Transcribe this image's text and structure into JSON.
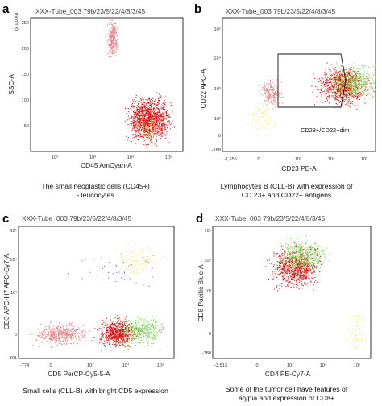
{
  "colors": {
    "pink": "#e57f86",
    "red": "#dd1616",
    "green": "#7ed957",
    "yellow": "#f2ef64",
    "blue": "#6d6de3"
  },
  "chart_data": [
    {
      "type": "scatter",
      "panel_label": "a",
      "title": "XXX-Tube_003 79b/23/5/22/4/8/3/45",
      "xlabel": "CD45 AmCyan-A",
      "ylabel": "SSC-A",
      "y_multiplier_label": "(x 1,000)",
      "x_scale": "log",
      "y_scale": "linear",
      "xlim": [
        15,
        150000
      ],
      "ylim": [
        0,
        260
      ],
      "x_ticks": [
        "10²",
        "10³",
        "10⁴",
        "10⁵"
      ],
      "y_ticks": [
        "50",
        "100",
        "150",
        "200",
        "250"
      ],
      "caption": [
        "The small neoplastic cells (CD45+)",
        "- leucocytes"
      ],
      "populations": [
        {
          "color": "pink",
          "n": 260,
          "x": [
            1600,
            2900
          ],
          "y": [
            185,
            250
          ]
        },
        {
          "color": "red",
          "n": 1300,
          "x": [
            6000,
            60000
          ],
          "y": [
            25,
            100
          ]
        },
        {
          "color": "yellow",
          "n": 70,
          "x": [
            9000,
            45000
          ],
          "y": [
            28,
            70
          ]
        }
      ]
    },
    {
      "type": "scatter",
      "panel_label": "b",
      "title": "XXX-Tube_003 79b/23/5/22/4/8/3/45",
      "xlabel": "CD23 PE-A",
      "ylabel": "CD22 APC-A",
      "x_scale": "biexponential",
      "y_scale": "biexponential",
      "xlim": [
        -1655,
        130000
      ],
      "ylim": [
        -188,
        130000
      ],
      "x_ticks": [
        "-1,655",
        "0",
        "10³",
        "10⁴",
        "10⁵"
      ],
      "y_ticks": [
        "-188",
        "0",
        "10²",
        "10³",
        "10⁴",
        "10⁵"
      ],
      "gate": {
        "label": "CD23+/CD22+dim",
        "x": [
          2500,
          110000
        ],
        "y": [
          300,
          60000
        ]
      },
      "caption": [
        "Lymphocytes B (CLL-B) with expression of",
        "CD 23+ and CD22+ antigens"
      ],
      "populations": [
        {
          "color": "pink",
          "n": 220,
          "x": [
            -60,
            160
          ],
          "y": [
            500,
            2500
          ]
        },
        {
          "color": "yellow",
          "n": 80,
          "x": [
            -250,
            90
          ],
          "y": [
            20,
            600
          ]
        },
        {
          "color": "red",
          "n": 900,
          "x": [
            3000,
            60000
          ],
          "y": [
            600,
            5000
          ]
        },
        {
          "color": "green",
          "n": 500,
          "x": [
            6000,
            120000
          ],
          "y": [
            900,
            5500
          ]
        }
      ]
    },
    {
      "type": "scatter",
      "panel_label": "c",
      "title": "XXX-Tube_003 79b/23/5/22/4/8/3/45",
      "xlabel": "CD5 PerCP-Cy5-5-A",
      "ylabel": "CD3 APC-H7 APC-Cy7-A",
      "x_scale": "biexponential",
      "y_scale": "biexponential",
      "xlim": [
        -774,
        150000
      ],
      "ylim": [
        -301,
        150000
      ],
      "x_ticks": [
        "-774",
        "0",
        "10³",
        "10⁴",
        "10⁵"
      ],
      "y_ticks": [
        "-301",
        "0",
        "10³",
        "10⁴",
        "10⁵"
      ],
      "caption": [
        "Small cells (CLL-B) with bright CD5 expression"
      ],
      "populations": [
        {
          "color": "pink",
          "n": 450,
          "x": [
            -200,
            400
          ],
          "y": [
            -60,
            150
          ]
        },
        {
          "color": "red",
          "n": 650,
          "x": [
            1500,
            10000
          ],
          "y": [
            -80,
            200
          ]
        },
        {
          "color": "green",
          "n": 420,
          "x": [
            6000,
            60000
          ],
          "y": [
            -60,
            260
          ]
        },
        {
          "color": "yellow",
          "n": 110,
          "x": [
            4000,
            50000
          ],
          "y": [
            6000,
            40000
          ]
        },
        {
          "color": "blue",
          "n": 45,
          "x": [
            300,
            60000
          ],
          "y": [
            3000,
            30000
          ]
        }
      ]
    },
    {
      "type": "scatter",
      "panel_label": "d",
      "title": "XXX-Tube_003 79b/23/5/22/4/8/3/45",
      "xlabel": "CD4 PE-Cy7-A",
      "ylabel": "CD8 Pacific Blue-A",
      "x_scale": "biexponential",
      "y_scale": "biexponential",
      "xlim": [
        -3513,
        150000
      ],
      "ylim": [
        -380,
        150000
      ],
      "x_ticks": [
        "-3,513",
        "0",
        "10³",
        "10⁴",
        "10⁵"
      ],
      "y_ticks": [
        "-380",
        "0",
        "10³",
        "10⁴",
        "10⁵"
      ],
      "caption": [
        "Some of the tumor cell have features of",
        "atypia and expression of CD8+"
      ],
      "populations": [
        {
          "color": "red",
          "n": 800,
          "x": [
            100,
            3000
          ],
          "y": [
            2500,
            30000
          ]
        },
        {
          "color": "green",
          "n": 450,
          "x": [
            250,
            5000
          ],
          "y": [
            8000,
            60000
          ]
        },
        {
          "color": "yellow",
          "n": 70,
          "x": [
            30000,
            110000
          ],
          "y": [
            -200,
            300
          ]
        }
      ]
    }
  ]
}
